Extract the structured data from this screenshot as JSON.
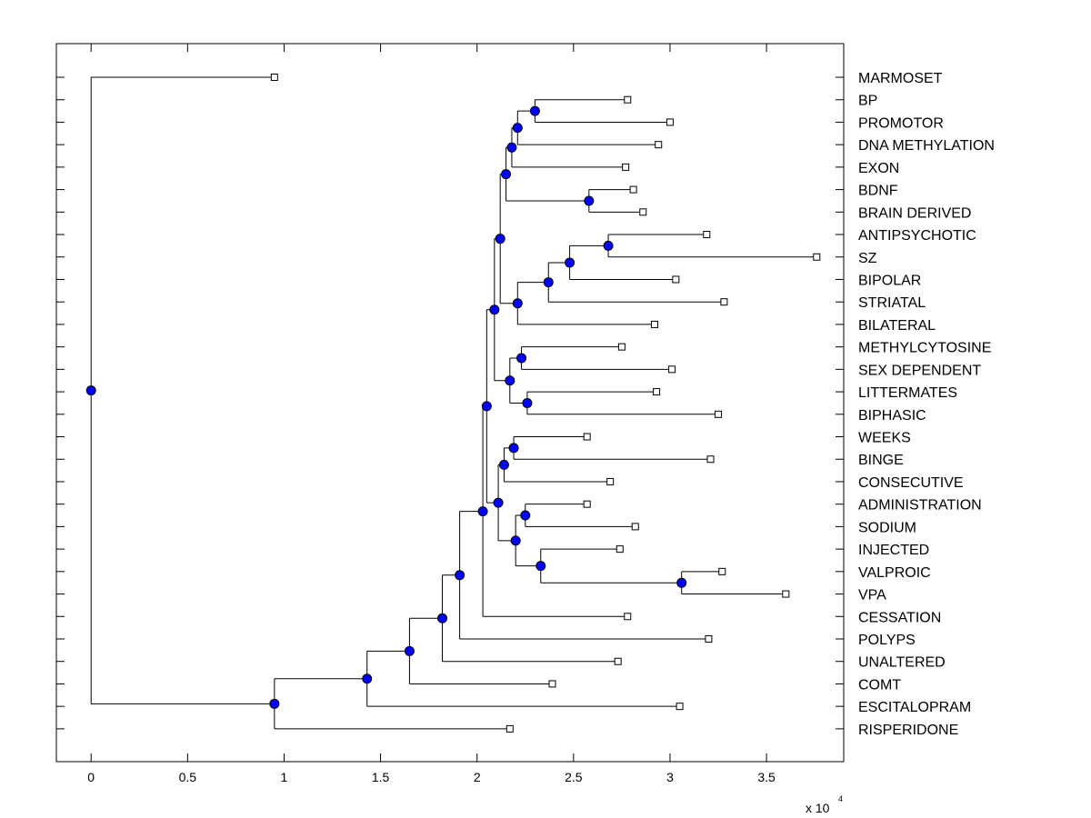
{
  "chart_data": {
    "type": "dendrogram",
    "orientation": "horizontal",
    "x_scale_label": "x 10",
    "x_scale_exponent": "4",
    "xlim": [
      -1800,
      39000
    ],
    "x_ticks": [
      {
        "value": 0,
        "label": "0"
      },
      {
        "value": 5000,
        "label": "0.5"
      },
      {
        "value": 10000,
        "label": "1"
      },
      {
        "value": 15000,
        "label": "1.5"
      },
      {
        "value": 20000,
        "label": "2"
      },
      {
        "value": 25000,
        "label": "2.5"
      },
      {
        "value": 30000,
        "label": "3"
      },
      {
        "value": 35000,
        "label": "3.5"
      }
    ],
    "leaves": [
      {
        "id": "L0",
        "label": "MARMOSET",
        "x": 9500
      },
      {
        "id": "L1",
        "label": "BP",
        "x": 27800
      },
      {
        "id": "L2",
        "label": "PROMOTOR",
        "x": 30000
      },
      {
        "id": "L3",
        "label": "DNA METHYLATION",
        "x": 29400
      },
      {
        "id": "L4",
        "label": "EXON",
        "x": 27700
      },
      {
        "id": "L5",
        "label": "BDNF",
        "x": 28100
      },
      {
        "id": "L6",
        "label": "BRAIN DERIVED",
        "x": 28600
      },
      {
        "id": "L7",
        "label": "ANTIPSYCHOTIC",
        "x": 31900
      },
      {
        "id": "L8",
        "label": "SZ",
        "x": 37600
      },
      {
        "id": "L9",
        "label": "BIPOLAR",
        "x": 30300
      },
      {
        "id": "L10",
        "label": "STRIATAL",
        "x": 32800
      },
      {
        "id": "L11",
        "label": "BILATERAL",
        "x": 29200
      },
      {
        "id": "L12",
        "label": "METHYLCYTOSINE",
        "x": 27500
      },
      {
        "id": "L13",
        "label": "SEX DEPENDENT",
        "x": 30100
      },
      {
        "id": "L14",
        "label": "LITTERMATES",
        "x": 29300
      },
      {
        "id": "L15",
        "label": "BIPHASIC",
        "x": 32500
      },
      {
        "id": "L16",
        "label": "WEEKS",
        "x": 25700
      },
      {
        "id": "L17",
        "label": "BINGE",
        "x": 32100
      },
      {
        "id": "L18",
        "label": "CONSECUTIVE",
        "x": 26900
      },
      {
        "id": "L19",
        "label": "ADMINISTRATION",
        "x": 25700
      },
      {
        "id": "L20",
        "label": "SODIUM",
        "x": 28200
      },
      {
        "id": "L21",
        "label": "INJECTED",
        "x": 27400
      },
      {
        "id": "L22",
        "label": "VALPROIC",
        "x": 32700
      },
      {
        "id": "L23",
        "label": "VPA",
        "x": 36000
      },
      {
        "id": "L24",
        "label": "CESSATION",
        "x": 27800
      },
      {
        "id": "L25",
        "label": "POLYPS",
        "x": 32000
      },
      {
        "id": "L26",
        "label": "UNALTERED",
        "x": 27300
      },
      {
        "id": "L27",
        "label": "COMT",
        "x": 23900
      },
      {
        "id": "L28",
        "label": "ESCITALOPRAM",
        "x": 30500
      },
      {
        "id": "L29",
        "label": "RISPERIDONE",
        "x": 21700
      }
    ],
    "nodes": [
      {
        "id": "n1",
        "x": 23000,
        "children": [
          "L1",
          "L2"
        ]
      },
      {
        "id": "n2",
        "x": 22100,
        "children": [
          "n1",
          "L3"
        ]
      },
      {
        "id": "n3",
        "x": 21800,
        "children": [
          "n2",
          "L4"
        ]
      },
      {
        "id": "n4",
        "x": 25800,
        "children": [
          "L5",
          "L6"
        ]
      },
      {
        "id": "n5",
        "x": 21500,
        "children": [
          "n3",
          "n4"
        ]
      },
      {
        "id": "n6",
        "x": 26800,
        "children": [
          "L7",
          "L8"
        ]
      },
      {
        "id": "n7",
        "x": 24800,
        "children": [
          "n6",
          "L9"
        ]
      },
      {
        "id": "n8",
        "x": 23700,
        "children": [
          "n7",
          "L10"
        ]
      },
      {
        "id": "n9",
        "x": 22100,
        "children": [
          "n8",
          "L11"
        ]
      },
      {
        "id": "n10",
        "x": 21200,
        "children": [
          "n5",
          "n9"
        ]
      },
      {
        "id": "n11",
        "x": 22300,
        "children": [
          "L12",
          "L13"
        ]
      },
      {
        "id": "n12",
        "x": 22600,
        "children": [
          "L14",
          "L15"
        ]
      },
      {
        "id": "n13",
        "x": 21700,
        "children": [
          "n11",
          "n12"
        ]
      },
      {
        "id": "n14",
        "x": 20900,
        "children": [
          "n10",
          "n13"
        ]
      },
      {
        "id": "n15",
        "x": 21900,
        "children": [
          "L16",
          "L17"
        ]
      },
      {
        "id": "n16",
        "x": 21400,
        "children": [
          "n15",
          "L18"
        ]
      },
      {
        "id": "n17",
        "x": 22500,
        "children": [
          "L19",
          "L20"
        ]
      },
      {
        "id": "n18",
        "x": 30600,
        "children": [
          "L22",
          "L23"
        ]
      },
      {
        "id": "n19",
        "x": 23300,
        "children": [
          "L21",
          "n18"
        ]
      },
      {
        "id": "n20",
        "x": 22000,
        "children": [
          "n17",
          "n19"
        ]
      },
      {
        "id": "n21",
        "x": 21100,
        "children": [
          "n16",
          "n20"
        ]
      },
      {
        "id": "n22",
        "x": 20500,
        "children": [
          "n14",
          "n21"
        ]
      },
      {
        "id": "n23",
        "x": 20300,
        "children": [
          "n22",
          "L24"
        ]
      },
      {
        "id": "n24",
        "x": 19100,
        "children": [
          "n23",
          "L25"
        ]
      },
      {
        "id": "n25",
        "x": 18200,
        "children": [
          "n24",
          "L26"
        ]
      },
      {
        "id": "n26",
        "x": 16500,
        "children": [
          "n25",
          "L27"
        ]
      },
      {
        "id": "n27",
        "x": 14300,
        "children": [
          "n26",
          "L28"
        ]
      },
      {
        "id": "n28",
        "x": 9500,
        "children": [
          "n27",
          "L29"
        ]
      },
      {
        "id": "n29",
        "x": 0,
        "children": [
          "L0",
          "n28"
        ]
      }
    ],
    "colors": {
      "node_fill": "#0000ff",
      "leaf_fill": "#ffffff",
      "line": "#000000"
    }
  }
}
